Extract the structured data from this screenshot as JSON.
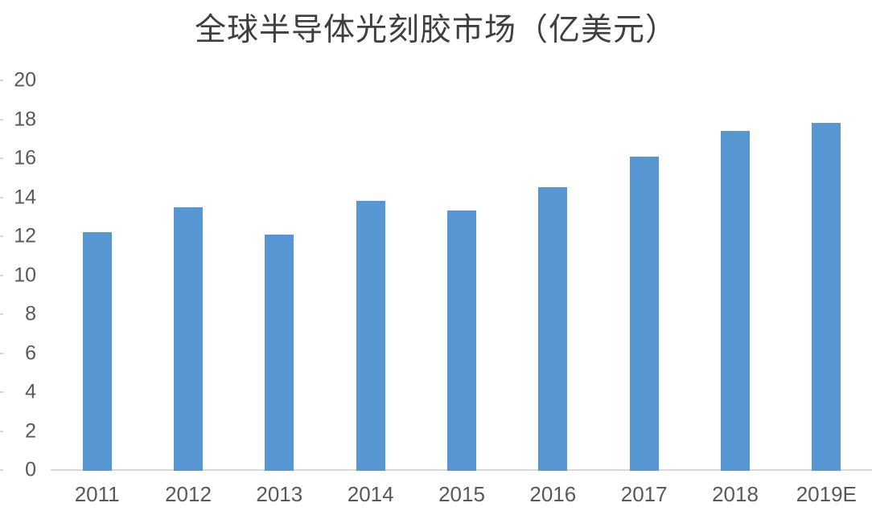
{
  "title": "全球半导体光刻胶市场（亿美元）",
  "colors": {
    "bar": "#5697d3",
    "axis_line": "#d9d9d9",
    "tick_label": "#595959",
    "title": "#3d3f40"
  },
  "chart_data": {
    "type": "bar",
    "title": "全球半导体光刻胶市场（亿美元）",
    "categories": [
      "2011",
      "2012",
      "2013",
      "2014",
      "2015",
      "2016",
      "2017",
      "2018",
      "2019E"
    ],
    "values": [
      12.2,
      13.5,
      12.1,
      13.8,
      13.3,
      14.5,
      16.1,
      17.4,
      17.8
    ],
    "xlabel": "",
    "ylabel": "",
    "ylim": [
      0,
      20
    ],
    "ytick_step": 2,
    "yticks": [
      0,
      2,
      4,
      6,
      8,
      10,
      12,
      14,
      16,
      18,
      20
    ],
    "grid": false,
    "legend": false
  }
}
